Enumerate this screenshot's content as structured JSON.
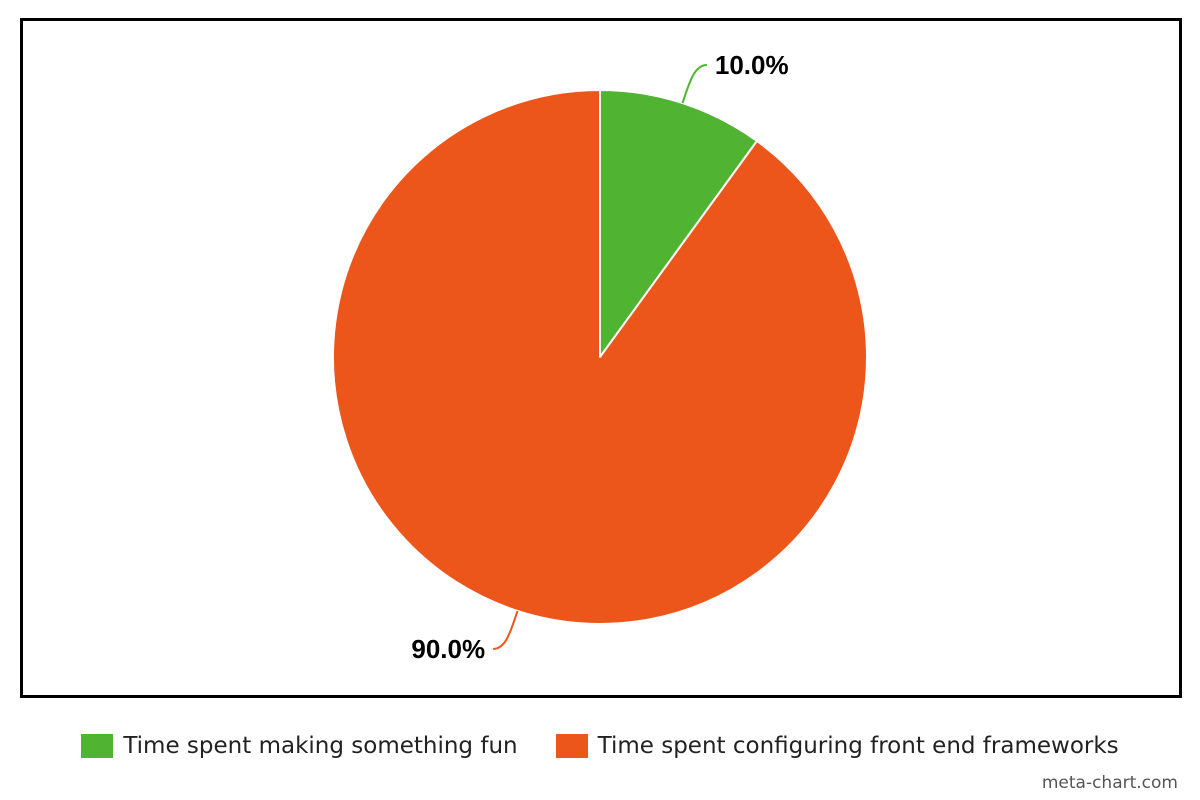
{
  "chart_data": {
    "type": "pie",
    "slices": [
      {
        "label": "Time spent making something fun",
        "value": 10.0,
        "display": "10.0%",
        "color": "#50b432"
      },
      {
        "label": "Time spent configuring front end frameworks",
        "value": 90.0,
        "display": "90.0%",
        "color": "#ed561b"
      }
    ],
    "legend_position": "bottom",
    "start_angle": "12 o'clock",
    "direction": "clockwise"
  },
  "watermark": "meta-chart.com"
}
